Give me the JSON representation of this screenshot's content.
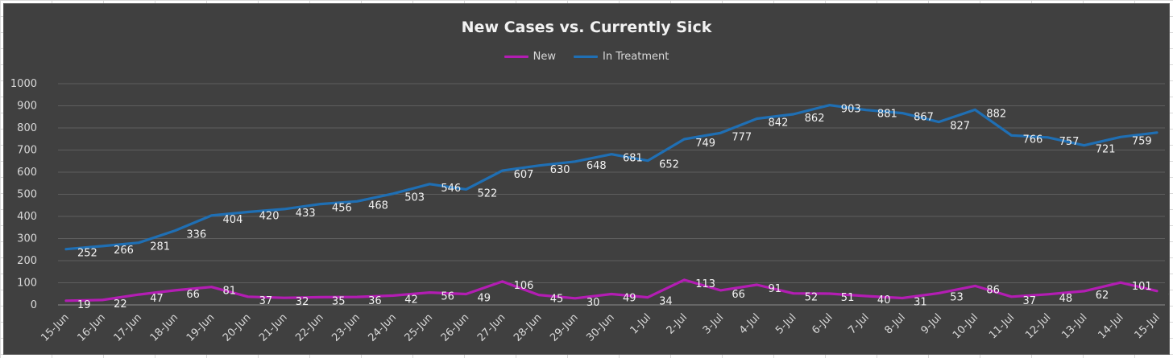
{
  "chart_data": {
    "type": "line",
    "title": "New Cases vs. Currently Sick",
    "legend": "top",
    "grid": true,
    "ylim": [
      0,
      1000
    ],
    "yticks": [
      0,
      100,
      200,
      300,
      400,
      500,
      600,
      700,
      800,
      900,
      1000
    ],
    "categories": [
      "15-Jun",
      "16-Jun",
      "17-Jun",
      "18-Jun",
      "19-Jun",
      "20-Jun",
      "21-Jun",
      "22-Jun",
      "23-Jun",
      "24-Jun",
      "25-Jun",
      "26-Jun",
      "27-Jun",
      "28-Jun",
      "29-Jun",
      "30-Jun",
      "1-Jul",
      "2-Jul",
      "3-Jul",
      "4-Jul",
      "5-Jul",
      "6-Jul",
      "7-Jul",
      "8-Jul",
      "9-Jul",
      "10-Jul",
      "11-Jul",
      "12-Jul",
      "13-Jul",
      "14-Jul",
      "15-Jul"
    ],
    "series": [
      {
        "name": "New",
        "color": "#b31db3",
        "values": [
          19,
          22,
          47,
          66,
          81,
          37,
          32,
          35,
          36,
          42,
          56,
          49,
          106,
          45,
          30,
          49,
          34,
          113,
          66,
          91,
          52,
          51,
          40,
          31,
          53,
          86,
          37,
          48,
          62,
          101,
          63
        ]
      },
      {
        "name": "In Treatment",
        "color": "#1f6fb4",
        "values": [
          252,
          266,
          281,
          336,
          404,
          420,
          433,
          456,
          468,
          503,
          546,
          522,
          607,
          630,
          648,
          681,
          652,
          749,
          777,
          842,
          862,
          903,
          881,
          867,
          827,
          882,
          766,
          757,
          721,
          759,
          779
        ]
      }
    ]
  }
}
